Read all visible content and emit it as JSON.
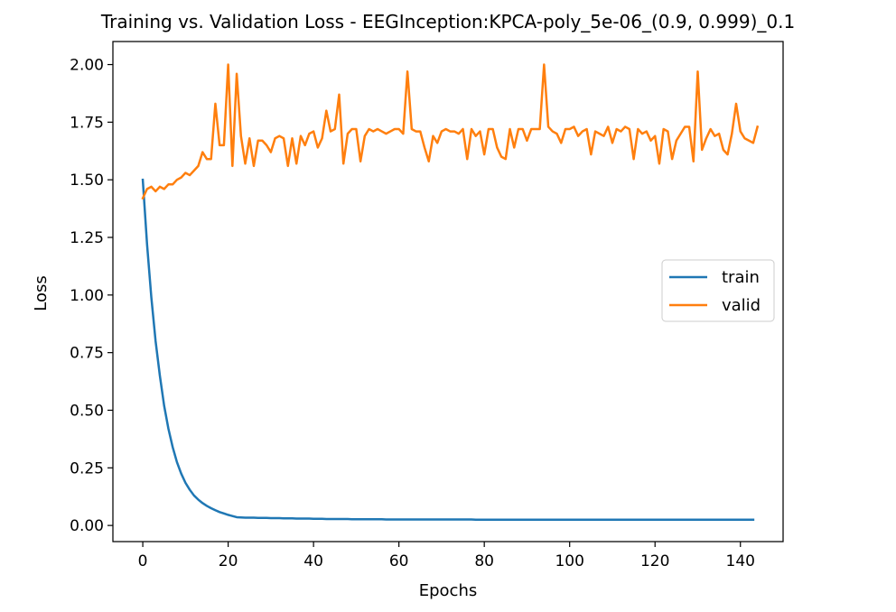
{
  "chart_data": {
    "type": "line",
    "title": "Training vs. Validation Loss - EEGInception:KPCA-poly_5e-06_(0.9, 0.999)_0.1",
    "xlabel": "Epochs",
    "ylabel": "Loss",
    "xlim": [
      -7,
      150
    ],
    "ylim": [
      -0.07,
      2.1
    ],
    "xticks": [
      0,
      20,
      40,
      60,
      80,
      100,
      120,
      140
    ],
    "yticks": [
      0.0,
      0.25,
      0.5,
      0.75,
      1.0,
      1.25,
      1.5,
      1.75,
      2.0
    ],
    "xtick_labels": [
      "0",
      "20",
      "40",
      "60",
      "80",
      "100",
      "120",
      "140"
    ],
    "ytick_labels": [
      "0.00",
      "0.25",
      "0.50",
      "0.75",
      "1.00",
      "1.25",
      "1.50",
      "1.75",
      "2.00"
    ],
    "grid": false,
    "legend": "center-right",
    "series": [
      {
        "name": "train",
        "color": "#1f77b4",
        "values": [
          1.5,
          1.22,
          0.99,
          0.8,
          0.65,
          0.52,
          0.42,
          0.34,
          0.275,
          0.225,
          0.185,
          0.155,
          0.13,
          0.112,
          0.097,
          0.085,
          0.075,
          0.066,
          0.058,
          0.052,
          0.046,
          0.041,
          0.036,
          0.035,
          0.034,
          0.034,
          0.034,
          0.033,
          0.033,
          0.033,
          0.032,
          0.032,
          0.032,
          0.031,
          0.031,
          0.031,
          0.03,
          0.03,
          0.03,
          0.03,
          0.029,
          0.029,
          0.029,
          0.028,
          0.028,
          0.028,
          0.028,
          0.028,
          0.028,
          0.027,
          0.027,
          0.027,
          0.027,
          0.027,
          0.027,
          0.027,
          0.027,
          0.026,
          0.026,
          0.026,
          0.026,
          0.026,
          0.026,
          0.026,
          0.026,
          0.026,
          0.026,
          0.026,
          0.026,
          0.026,
          0.026,
          0.026,
          0.026,
          0.026,
          0.026,
          0.026,
          0.026,
          0.026,
          0.025,
          0.025,
          0.025,
          0.025,
          0.025,
          0.025,
          0.025,
          0.025,
          0.025,
          0.025,
          0.025,
          0.025,
          0.025,
          0.025,
          0.025,
          0.025,
          0.025,
          0.025,
          0.025,
          0.025,
          0.025,
          0.025,
          0.025,
          0.025,
          0.025,
          0.025,
          0.025,
          0.025,
          0.025,
          0.025,
          0.025,
          0.025,
          0.025,
          0.025,
          0.025,
          0.025,
          0.025,
          0.025,
          0.025,
          0.025,
          0.025,
          0.025,
          0.025,
          0.025,
          0.025,
          0.025,
          0.025,
          0.025,
          0.025,
          0.025,
          0.025,
          0.025,
          0.025,
          0.025,
          0.025,
          0.025,
          0.025,
          0.025,
          0.025,
          0.025,
          0.025,
          0.025,
          0.025,
          0.025,
          0.025,
          0.025
        ]
      },
      {
        "name": "valid",
        "color": "#ff7f0e",
        "values": [
          1.42,
          1.46,
          1.47,
          1.45,
          1.47,
          1.46,
          1.48,
          1.48,
          1.5,
          1.51,
          1.53,
          1.52,
          1.54,
          1.56,
          1.62,
          1.59,
          1.59,
          1.83,
          1.65,
          1.65,
          2.0,
          1.56,
          1.96,
          1.69,
          1.57,
          1.68,
          1.56,
          1.67,
          1.67,
          1.65,
          1.62,
          1.68,
          1.69,
          1.68,
          1.56,
          1.68,
          1.57,
          1.69,
          1.65,
          1.7,
          1.71,
          1.64,
          1.68,
          1.8,
          1.71,
          1.72,
          1.87,
          1.57,
          1.7,
          1.72,
          1.72,
          1.58,
          1.69,
          1.72,
          1.71,
          1.72,
          1.71,
          1.7,
          1.71,
          1.72,
          1.72,
          1.7,
          1.97,
          1.72,
          1.71,
          1.71,
          1.64,
          1.58,
          1.69,
          1.66,
          1.71,
          1.72,
          1.71,
          1.71,
          1.7,
          1.72,
          1.59,
          1.72,
          1.69,
          1.71,
          1.61,
          1.72,
          1.72,
          1.64,
          1.6,
          1.59,
          1.72,
          1.64,
          1.72,
          1.72,
          1.67,
          1.72,
          1.72,
          1.72,
          2.0,
          1.73,
          1.71,
          1.7,
          1.66,
          1.72,
          1.72,
          1.73,
          1.69,
          1.71,
          1.72,
          1.61,
          1.71,
          1.7,
          1.69,
          1.73,
          1.66,
          1.72,
          1.71,
          1.73,
          1.72,
          1.59,
          1.72,
          1.7,
          1.71,
          1.67,
          1.69,
          1.57,
          1.72,
          1.71,
          1.59,
          1.67,
          1.7,
          1.73,
          1.73,
          1.58,
          1.97,
          1.63,
          1.68,
          1.72,
          1.69,
          1.7,
          1.63,
          1.61,
          1.7,
          1.83,
          1.71,
          1.68,
          1.67,
          1.66,
          1.73
        ]
      }
    ]
  }
}
